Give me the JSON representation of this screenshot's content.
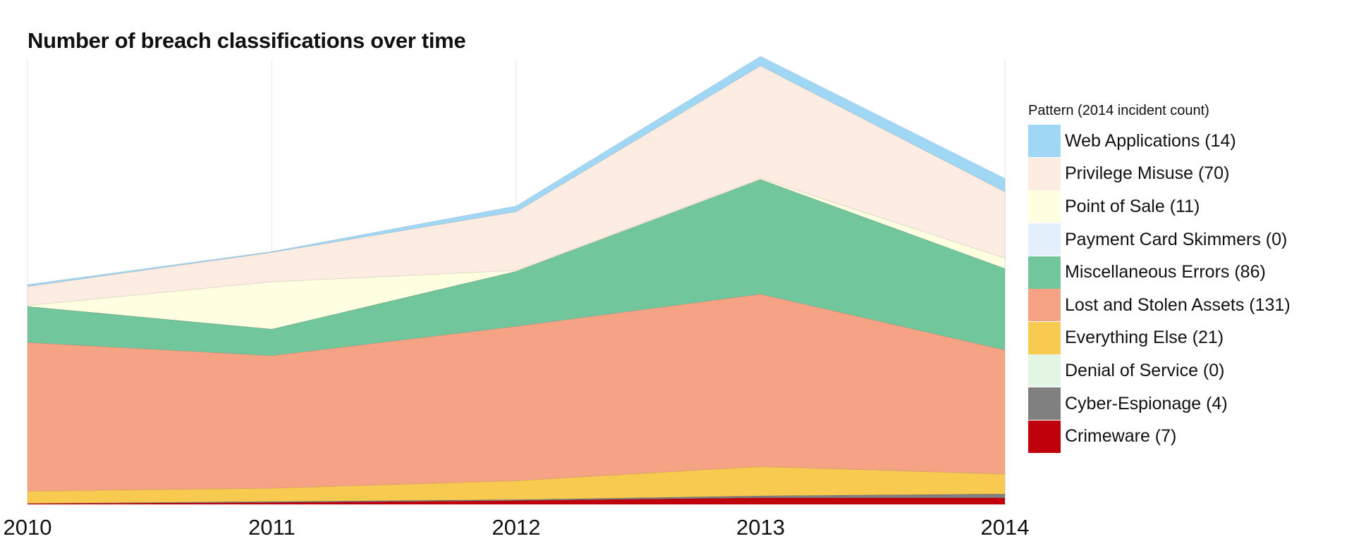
{
  "chart_data": {
    "type": "area",
    "stacked": true,
    "title": "Number of breach classifications over time",
    "xlabel": "",
    "ylabel": "",
    "x": [
      "2010",
      "2011",
      "2012",
      "2013",
      "2014"
    ],
    "ylim": [
      0,
      470
    ],
    "grid": "vertical",
    "legend_title": "Pattern (2014 incident count)",
    "legend_position": "right",
    "series": [
      {
        "name": "Crimeware (7)",
        "color": "#c0000b",
        "values": [
          1,
          2,
          4,
          7,
          7
        ]
      },
      {
        "name": "Cyber-Espionage (4)",
        "color": "#808080",
        "values": [
          0,
          1,
          1,
          2,
          4
        ]
      },
      {
        "name": "Denial of Service (0)",
        "color": "#e3f5e3",
        "values": [
          0,
          0,
          0,
          0,
          0
        ]
      },
      {
        "name": "Everything Else (21)",
        "color": "#f9ca50",
        "values": [
          13,
          14,
          20,
          31,
          21
        ]
      },
      {
        "name": "Lost and Stolen Assets (131)",
        "color": "#f6a385",
        "values": [
          157,
          140,
          163,
          182,
          131
        ]
      },
      {
        "name": "Miscellaneous Errors (86)",
        "color": "#72c69b",
        "values": [
          38,
          28,
          58,
          121,
          86
        ]
      },
      {
        "name": "Payment Card Skimmers (0)",
        "color": "#e3f0fb",
        "values": [
          0,
          0,
          0,
          0,
          0
        ]
      },
      {
        "name": "Point of Sale (11)",
        "color": "#fefee1",
        "values": [
          1,
          50,
          1,
          1,
          11
        ]
      },
      {
        "name": "Privilege Misuse (70)",
        "color": "#fcece2",
        "values": [
          20,
          31,
          62,
          119,
          70
        ]
      },
      {
        "name": "Web Applications (14)",
        "color": "#a0d7f5",
        "values": [
          2,
          1,
          6,
          10,
          14
        ]
      }
    ]
  }
}
